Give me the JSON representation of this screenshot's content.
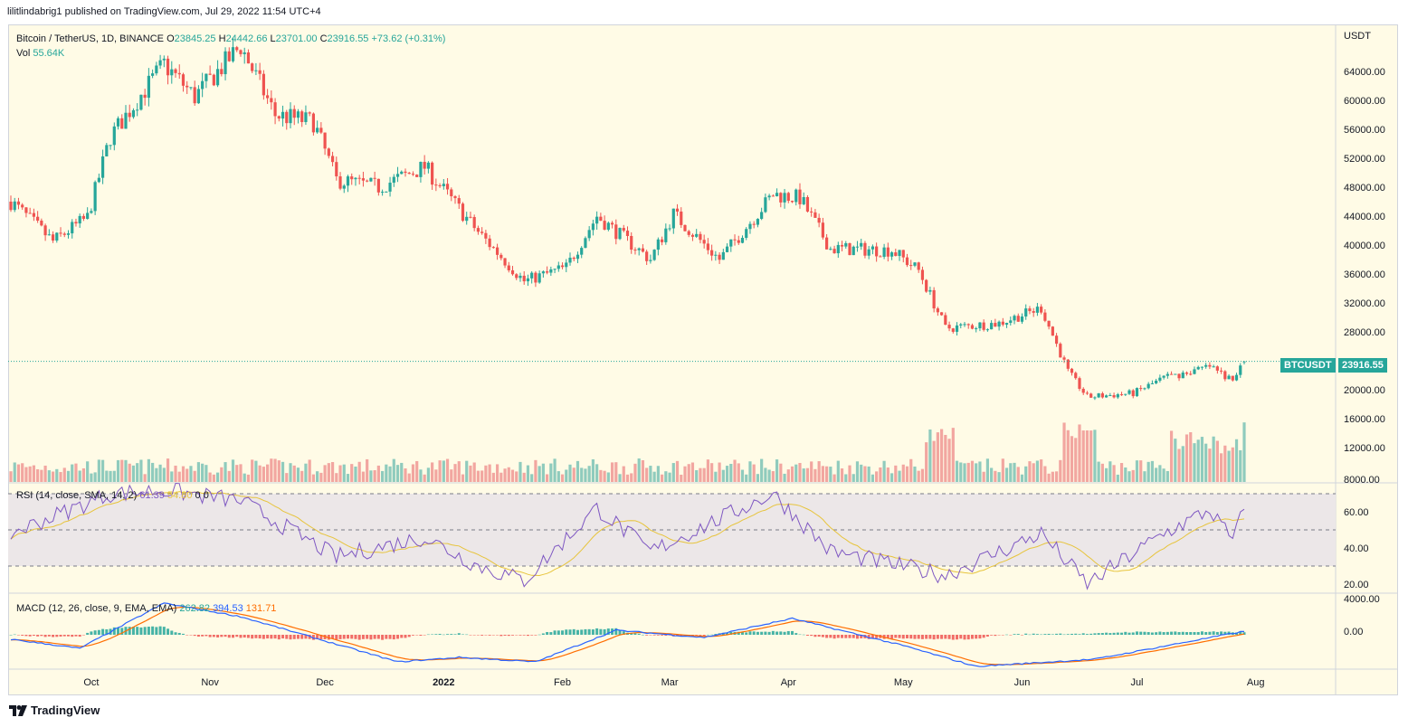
{
  "header": {
    "published_text": "lilitlindabrig1 published on TradingView.com, Jul 29, 2022 11:54 UTC+4"
  },
  "footer": {
    "brand": "TradingView",
    "logo_icon": "tradingview-logo-icon"
  },
  "main_legend": {
    "symbol": "Bitcoin / TetherUS, 1D, BINANCE",
    "o_label": "O",
    "o_value": "23845.25",
    "h_label": "H",
    "h_value": "24442.66",
    "l_label": "L",
    "l_value": "23701.00",
    "c_label": "C",
    "c_value": "23916.55",
    "change": "+73.62 (+0.31%)",
    "vol_label": "Vol",
    "vol_value": "55.64K"
  },
  "rsi_legend": {
    "label": "RSI (14, close, SMA, 14, 2)",
    "rsi": "61.39",
    "sma": "54.80",
    "extra1": "0",
    "extra2": "0"
  },
  "macd_legend": {
    "label": "MACD (12, 26, close, 9, EMA, EMA)",
    "hist": "262.82",
    "macd": "394.53",
    "signal": "131.71"
  },
  "price_axis": {
    "currency": "USDT",
    "ticks": [
      "64000.00",
      "60000.00",
      "56000.00",
      "52000.00",
      "48000.00",
      "44000.00",
      "40000.00",
      "36000.00",
      "32000.00",
      "28000.00",
      "20000.00",
      "16000.00",
      "12000.00",
      "8000.00"
    ]
  },
  "rsi_axis": {
    "ticks": [
      "60.00",
      "40.00",
      "20.00"
    ]
  },
  "macd_axis": {
    "ticks": [
      "4000.00",
      "0.00"
    ]
  },
  "time_axis": {
    "labels": [
      "Oct",
      "Nov",
      "Dec",
      "2022",
      "Feb",
      "Mar",
      "Apr",
      "May",
      "Jun",
      "Jul",
      "Aug"
    ]
  },
  "last_price_tag": {
    "symbol": "BTCUSDT",
    "price": "23916.55"
  },
  "colors": {
    "up": "#26a69a",
    "down": "#ef5350",
    "rsi": "#7e57c2",
    "rsi_ma": "#e7c43c",
    "macd": "#2962ff",
    "signal": "#ff6d00",
    "background": "#fffbe6"
  },
  "chart_data": {
    "type": "candlestick",
    "x_range": [
      "2021-09-10",
      "2022-07-29"
    ],
    "price_key_closes": [
      [
        "2021-09-10",
        46000
      ],
      [
        "2021-09-21",
        40500
      ],
      [
        "2021-09-30",
        43800
      ],
      [
        "2021-10-06",
        55000
      ],
      [
        "2021-10-15",
        61500
      ],
      [
        "2021-10-20",
        65000
      ],
      [
        "2021-10-28",
        60500
      ],
      [
        "2021-11-09",
        67500
      ],
      [
        "2021-11-18",
        58000
      ],
      [
        "2021-11-28",
        57000
      ],
      [
        "2021-12-04",
        49000
      ],
      [
        "2021-12-15",
        48000
      ],
      [
        "2021-12-27",
        50800
      ],
      [
        "2022-01-10",
        41800
      ],
      [
        "2022-01-22",
        35000
      ],
      [
        "2022-02-02",
        36900
      ],
      [
        "2022-02-10",
        44000
      ],
      [
        "2022-02-24",
        38000
      ],
      [
        "2022-03-02",
        44300
      ],
      [
        "2022-03-14",
        38000
      ],
      [
        "2022-03-28",
        47000
      ],
      [
        "2022-04-04",
        46500
      ],
      [
        "2022-04-12",
        39500
      ],
      [
        "2022-04-28",
        39300
      ],
      [
        "2022-05-05",
        36500
      ],
      [
        "2022-05-12",
        28500
      ],
      [
        "2022-05-26",
        29200
      ],
      [
        "2022-06-06",
        31300
      ],
      [
        "2022-06-13",
        22500
      ],
      [
        "2022-06-18",
        19000
      ],
      [
        "2022-06-30",
        19500
      ],
      [
        "2022-07-08",
        21600
      ],
      [
        "2022-07-20",
        23200
      ],
      [
        "2022-07-26",
        21200
      ],
      [
        "2022-07-29",
        23916.55
      ]
    ],
    "rsi_key": [
      [
        "2021-09-10",
        48
      ],
      [
        "2021-10-06",
        70
      ],
      [
        "2021-10-20",
        72
      ],
      [
        "2021-11-09",
        66
      ],
      [
        "2021-12-04",
        35
      ],
      [
        "2021-12-27",
        46
      ],
      [
        "2022-01-10",
        30
      ],
      [
        "2022-01-22",
        22
      ],
      [
        "2022-02-10",
        62
      ],
      [
        "2022-02-24",
        38
      ],
      [
        "2022-03-28",
        70
      ],
      [
        "2022-04-12",
        38
      ],
      [
        "2022-05-12",
        25
      ],
      [
        "2022-06-06",
        48
      ],
      [
        "2022-06-18",
        20
      ],
      [
        "2022-07-08",
        48
      ],
      [
        "2022-07-20",
        61
      ],
      [
        "2022-07-26",
        44
      ],
      [
        "2022-07-29",
        61.39
      ]
    ],
    "macd_key": [
      [
        "2021-09-10",
        -500
      ],
      [
        "2021-09-28",
        -1500
      ],
      [
        "2021-10-20",
        3500
      ],
      [
        "2021-11-09",
        2000
      ],
      [
        "2021-12-20",
        -3000
      ],
      [
        "2022-01-05",
        -2500
      ],
      [
        "2022-01-25",
        -3000
      ],
      [
        "2022-02-15",
        500
      ],
      [
        "2022-03-10",
        -300
      ],
      [
        "2022-04-02",
        1800
      ],
      [
        "2022-05-01",
        -1200
      ],
      [
        "2022-05-20",
        -3500
      ],
      [
        "2022-06-20",
        -2700
      ],
      [
        "2022-07-29",
        394.53
      ]
    ]
  }
}
